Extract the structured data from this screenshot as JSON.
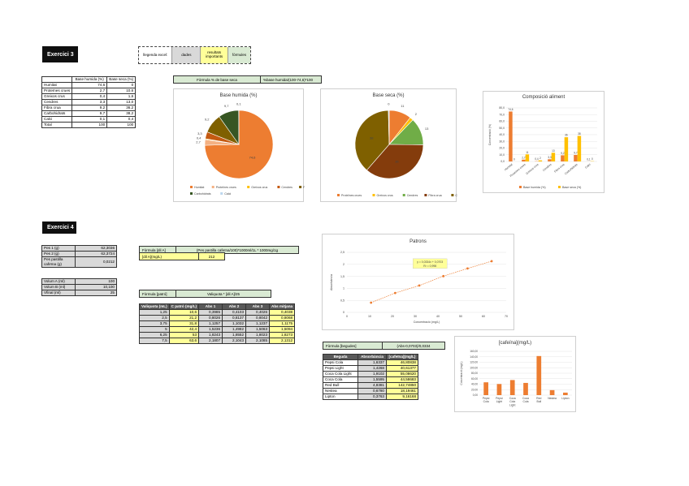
{
  "ex3": {
    "title": "Exercici 3",
    "legend": [
      "llegenda excel:",
      "dades",
      "resultats importants",
      "fòrmules"
    ],
    "legend_colors": {
      "dades": "#d9d9d9",
      "resultats": "#ffff99",
      "formules": "#d9ead3"
    },
    "table": {
      "headers": [
        "",
        "Base humida (%)",
        "Base seca (%)"
      ],
      "rows": [
        [
          "Humitat",
          "74,6",
          "0"
        ],
        [
          "Proteïnes crues",
          "2,7",
          "10,6"
        ],
        [
          "Greixos crus",
          "0,4",
          "1,6"
        ],
        [
          "Cendres",
          "3,3",
          "13,0"
        ],
        [
          "Fibra crua",
          "9,2",
          "36,2"
        ],
        [
          "Carbohidrats",
          "9,7",
          "38,2"
        ],
        [
          "Calci",
          "0,1",
          "0,4"
        ],
        [
          "Total",
          "100",
          "100"
        ]
      ]
    },
    "formula": {
      "label": "Fòrmula % de base seca",
      "value": "%base humida/(100-74,6)*100"
    }
  },
  "pie1": {
    "title": "Base humida (%)",
    "legend": [
      "Humitat",
      "Proteïnes crues",
      "Greixos crus",
      "Cendres",
      "Fibra crua",
      "Carbohidrats",
      "Calci"
    ],
    "colors": [
      "#ed7d31",
      "#f4b183",
      "#ffc000",
      "#c55a11",
      "#7f6000",
      "#375623",
      "#bdd7ee"
    ],
    "values": [
      74.6,
      2.7,
      0.4,
      3.3,
      9.2,
      9.7,
      0.1
    ],
    "labels": [
      "74,6",
      "2,7",
      "0,4",
      "3,3",
      "9,2",
      "9,7",
      "0,1"
    ]
  },
  "pie2": {
    "title": "Base seca (%)",
    "legend": [
      "Proteïnes crues",
      "Greixos crus",
      "Cendres",
      "Fibra crua",
      "Carbohidrats",
      "Calci"
    ],
    "colors": [
      "#ed7d31",
      "#ffc000",
      "#70ad47",
      "#843c0c",
      "#7f6000",
      "#bdd7ee"
    ],
    "values": [
      10.6,
      1.6,
      13.0,
      36.2,
      38.2,
      0.4
    ],
    "labels": [
      "11",
      "2",
      "13",
      "36",
      "38",
      "0"
    ]
  },
  "bar1": {
    "title": "Composició aliment",
    "ylabel": "Concentració (%)",
    "ylim": [
      0,
      80
    ],
    "yticks": [
      "0,0",
      "10,0",
      "20,0",
      "30,0",
      "40,0",
      "50,0",
      "60,0",
      "70,0",
      "80,0"
    ],
    "categories": [
      "Humitat",
      "Proteïnes crues",
      "Greixos crus",
      "Cendres",
      "Fibra crua",
      "Carbohidrats",
      "Calci"
    ],
    "series": [
      {
        "name": "Base humida (%)",
        "color": "#ed7d31",
        "values": [
          74.6,
          2.7,
          0.4,
          3.3,
          9.2,
          9.7,
          0.1
        ],
        "labels": [
          "74,6",
          "2,7",
          "0,4",
          "3,3",
          "9,2",
          "9,7",
          "0,1"
        ]
      },
      {
        "name": "Base seca (%)",
        "color": "#ffc000",
        "values": [
          0,
          10.6,
          1.6,
          13.0,
          36.2,
          38.2,
          0.4
        ],
        "labels": [
          "0",
          "11",
          "2",
          "13",
          "36",
          "38",
          "0"
        ]
      }
    ]
  },
  "ex4": {
    "title": "Exercici 4",
    "inputs1": [
      [
        "Pes 1 (g)",
        "62,3036"
      ],
      [
        "Pes 2 (g)",
        "62,3724"
      ],
      [
        "Pes pastilla cafeïna (g)",
        "0,0212"
      ]
    ],
    "inputs2": [
      [
        "Volum A (ml)",
        "100"
      ],
      [
        "Volum B (ml)",
        "10,100"
      ],
      [
        "Vfinal (ml)",
        "25"
      ]
    ],
    "formula_dil": {
      "label": "Fòrmula [dil A]",
      "value": "(Pes pastilla cafeïna/100)*1000ml/1L * 1000mg/1g"
    },
    "dilA": {
      "label": "[dil A](mg/L)",
      "value": "212"
    },
    "formula_patro": {
      "label": "Fòrmula [patró]",
      "value": "Valiquota * [dil A]/25"
    },
    "patrons": {
      "headers": [
        "Valiquota (mL)",
        "C patró (mg/L)",
        "Abs 1",
        "Abs 2",
        "Abs 3",
        "Abs mitjana"
      ],
      "rows": [
        [
          "1,25",
          "10,6",
          "0,3985",
          "0,4103",
          "0,4026",
          "0,4038"
        ],
        [
          "2,5",
          "21,2",
          "0,8026",
          "0,8137",
          "0,8042",
          "0,8068"
        ],
        [
          "3,75",
          "31,8",
          "1,1257",
          "1,1032",
          "1,1237",
          "1,1175"
        ],
        [
          "5",
          "42,4",
          "1,5236",
          "1,4982",
          "1,5063",
          "1,5094"
        ],
        [
          "6,25",
          "53",
          "1,8243",
          "1,8552",
          "1,8023",
          "1,8273"
        ],
        [
          "7,5",
          "63,6",
          "2,1807",
          "2,1043",
          "2,1085",
          "2,1312"
        ]
      ]
    },
    "formula_begudes": {
      "label": "Fòrmula [begudes]",
      "value": "(Abs-0,0703)/0,0334"
    },
    "begudes": {
      "headers": [
        "Beguda",
        "Absorbància",
        "[cafeïna](mg/L)"
      ],
      "rows": [
        [
          "Pepsi Cola",
          "1,6337",
          "46,80838"
        ],
        [
          "Pepsi Light",
          "1,4268",
          "40,61377"
        ],
        [
          "Coca Cola Light",
          "1,9102",
          "55,08620"
        ],
        [
          "Coca Cola",
          "1,5595",
          "44,58683"
        ],
        [
          "Red Bull",
          "4,8381",
          "142,74850"
        ],
        [
          "Nestea",
          "0,6780",
          "18,19461"
        ],
        [
          "Lipton",
          "0,3763",
          "9,16168"
        ]
      ]
    }
  },
  "scatter": {
    "title": "Patrons",
    "xlabel": "Concentració (mg/L)",
    "ylabel": "Absorbància",
    "xlim": [
      0,
      70
    ],
    "ylim": [
      0,
      2.5
    ],
    "xticks": [
      "0",
      "10",
      "20",
      "30",
      "40",
      "50",
      "60",
      "70"
    ],
    "yticks": [
      "0",
      "0,5",
      "1",
      "1,5",
      "2",
      "2,5"
    ],
    "x": [
      10.6,
      21.2,
      31.8,
      42.4,
      53,
      63.6
    ],
    "y": [
      0.4038,
      0.8068,
      1.1175,
      1.5094,
      1.8273,
      2.1312
    ],
    "equation": "y = 0,0334x + 0,0703",
    "r2": "R² = 0,998",
    "color": "#ed7d31"
  },
  "bar2": {
    "title": "[cafeïna](mg/L)",
    "ylabel": "Concentració (mg/L)",
    "ylim": [
      0,
      160
    ],
    "yticks": [
      "0,00",
      "20,00",
      "40,00",
      "60,00",
      "80,00",
      "100,00",
      "120,00",
      "140,00",
      "160,00"
    ],
    "categories": [
      "Pepsi Cola",
      "Pepsi Light",
      "Coca Cola Light",
      "Coca Cola",
      "Red Bull",
      "Nestea",
      "Lipton"
    ],
    "values": [
      46.80838,
      40.61377,
      55.0862,
      44.58683,
      142.7485,
      18.19461,
      9.16168
    ],
    "color": "#ed7d31"
  }
}
